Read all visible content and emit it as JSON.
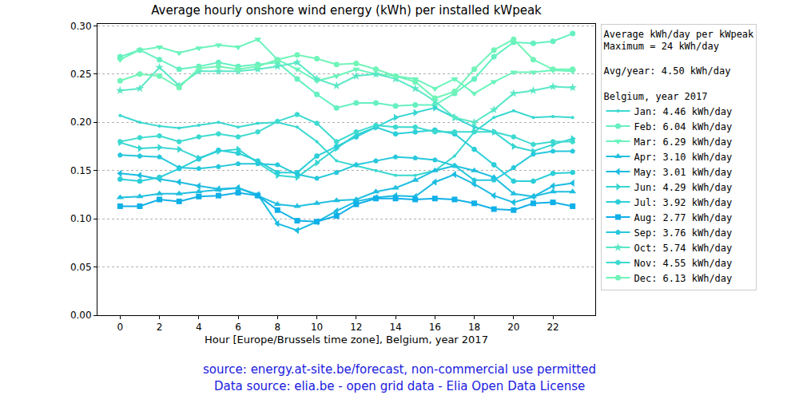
{
  "chart_data": {
    "type": "line",
    "title": "Average hourly onshore wind energy (kWh) per installed kWpeak",
    "x_label": "Hour [Europe/Brussels time zone], Belgium, year 2017",
    "x": [
      0,
      1,
      2,
      3,
      4,
      5,
      6,
      7,
      8,
      9,
      10,
      11,
      12,
      13,
      14,
      15,
      16,
      17,
      18,
      19,
      20,
      21,
      22,
      23
    ],
    "xlim": [
      -1.15,
      24.15
    ],
    "xticks": [
      0,
      2,
      4,
      6,
      8,
      10,
      12,
      14,
      16,
      18,
      20,
      22
    ],
    "ylim": [
      0,
      0.302
    ],
    "yticks": [
      {
        "value": 0,
        "label": "0.00"
      },
      {
        "value": 0.05,
        "label": "0.05"
      },
      {
        "value": 0.1,
        "label": "0.10"
      },
      {
        "value": 0.15,
        "label": "0.15"
      },
      {
        "value": 0.2,
        "label": "0.20"
      },
      {
        "value": 0.25,
        "label": "0.25"
      },
      {
        "value": 0.3,
        "label": "0.30"
      }
    ],
    "grid": true,
    "legend": "outside right",
    "legend_title": [
      [
        "Average kWh/day per kWpeak",
        "Maximum = 24 kWh/day"
      ],
      [
        "Avg/year: 4.50 kWh/day"
      ],
      [
        "Belgium, year 2017"
      ]
    ],
    "sources": [
      "source: energy.at-site.be/forecast, non-commercial use permitted",
      "Data source: elia.be - open grid data - Elia Open Data License"
    ],
    "series": [
      {
        "name": "Jan: 4.46 kWh/day",
        "color": "#3ad8d0",
        "marker": "point",
        "values": [
          0.207,
          0.2,
          0.196,
          0.194,
          0.197,
          0.2,
          0.195,
          0.199,
          0.2,
          0.195,
          0.18,
          0.16,
          0.155,
          0.15,
          0.145,
          0.145,
          0.15,
          0.165,
          0.19,
          0.205,
          0.212,
          0.205,
          0.206,
          0.205
        ]
      },
      {
        "name": "Feb: 6.04 kWh/day",
        "color": "#66f0c0",
        "marker": "circle",
        "values": [
          0.268,
          0.275,
          0.265,
          0.255,
          0.258,
          0.262,
          0.258,
          0.26,
          0.262,
          0.245,
          0.229,
          0.215,
          0.22,
          0.22,
          0.217,
          0.218,
          0.218,
          0.23,
          0.245,
          0.268,
          0.283,
          0.282,
          0.284,
          0.292
        ]
      },
      {
        "name": "Mar: 6.29 kWh/day",
        "color": "#6af4bc",
        "marker": "triangle-down",
        "values": [
          0.265,
          0.275,
          0.278,
          0.272,
          0.277,
          0.28,
          0.278,
          0.286,
          0.265,
          0.255,
          0.243,
          0.248,
          0.255,
          0.25,
          0.248,
          0.245,
          0.235,
          0.245,
          0.23,
          0.242,
          0.252,
          0.252,
          0.254,
          0.253
        ]
      },
      {
        "name": "Apr: 3.10 kWh/day",
        "color": "#20bfe0",
        "marker": "triangle-up",
        "values": [
          0.122,
          0.123,
          0.126,
          0.126,
          0.128,
          0.13,
          0.132,
          0.124,
          0.115,
          0.113,
          0.116,
          0.119,
          0.12,
          0.128,
          0.132,
          0.14,
          0.15,
          0.155,
          0.15,
          0.143,
          0.126,
          0.123,
          0.128,
          0.128
        ]
      },
      {
        "name": "May: 3.01 kWh/day",
        "color": "#1cbce2",
        "marker": "triangle-left",
        "values": [
          0.147,
          0.145,
          0.141,
          0.138,
          0.134,
          0.131,
          0.132,
          0.125,
          0.095,
          0.088,
          0.097,
          0.108,
          0.118,
          0.122,
          0.124,
          0.123,
          0.138,
          0.146,
          0.136,
          0.124,
          0.117,
          0.123,
          0.134,
          0.137
        ]
      },
      {
        "name": "Jun: 4.29 kWh/day",
        "color": "#36d6d2",
        "marker": "triangle-right",
        "values": [
          0.179,
          0.173,
          0.174,
          0.172,
          0.163,
          0.17,
          0.172,
          0.158,
          0.145,
          0.143,
          0.158,
          0.173,
          0.187,
          0.195,
          0.205,
          0.21,
          0.215,
          0.205,
          0.195,
          0.19,
          0.175,
          0.17,
          0.177,
          0.183
        ]
      },
      {
        "name": "Jul: 3.92 kWh/day",
        "color": "#2ccfd8",
        "marker": "octagon",
        "values": [
          0.141,
          0.139,
          0.143,
          0.152,
          0.162,
          0.171,
          0.168,
          0.16,
          0.148,
          0.148,
          0.165,
          0.175,
          0.185,
          0.195,
          0.188,
          0.19,
          0.192,
          0.188,
          0.172,
          0.156,
          0.139,
          0.139,
          0.147,
          0.148
        ]
      },
      {
        "name": "Aug: 2.77 kWh/day",
        "color": "#10b0e8",
        "marker": "square",
        "values": [
          0.113,
          0.113,
          0.12,
          0.118,
          0.123,
          0.124,
          0.127,
          0.124,
          0.109,
          0.098,
          0.097,
          0.103,
          0.115,
          0.121,
          0.121,
          0.12,
          0.121,
          0.12,
          0.116,
          0.11,
          0.109,
          0.116,
          0.117,
          0.113
        ]
      },
      {
        "name": "Sep: 3.76 kWh/day",
        "color": "#26c8dc",
        "marker": "pentagon",
        "values": [
          0.166,
          0.165,
          0.164,
          0.153,
          0.152,
          0.154,
          0.157,
          0.157,
          0.156,
          0.146,
          0.142,
          0.148,
          0.156,
          0.16,
          0.164,
          0.163,
          0.161,
          0.155,
          0.14,
          0.14,
          0.153,
          0.167,
          0.17,
          0.17
        ]
      },
      {
        "name": "Oct: 5.74 kWh/day",
        "color": "#5ae8c6",
        "marker": "star",
        "values": [
          0.233,
          0.235,
          0.257,
          0.238,
          0.253,
          0.253,
          0.253,
          0.255,
          0.258,
          0.262,
          0.245,
          0.238,
          0.248,
          0.25,
          0.245,
          0.235,
          0.222,
          0.205,
          0.2,
          0.213,
          0.23,
          0.233,
          0.237,
          0.236
        ]
      },
      {
        "name": "Nov: 4.55 kWh/day",
        "color": "#3cdad0",
        "marker": "hexagon",
        "values": [
          0.18,
          0.184,
          0.186,
          0.18,
          0.185,
          0.188,
          0.185,
          0.19,
          0.201,
          0.208,
          0.199,
          0.18,
          0.19,
          0.197,
          0.195,
          0.195,
          0.19,
          0.19,
          0.19,
          0.19,
          0.185,
          0.177,
          0.18,
          0.18
        ]
      },
      {
        "name": "Dec: 6.13 kWh/day",
        "color": "#70f4b8",
        "marker": "circle",
        "values": [
          0.243,
          0.25,
          0.248,
          0.236,
          0.256,
          0.258,
          0.255,
          0.258,
          0.265,
          0.27,
          0.266,
          0.26,
          0.261,
          0.255,
          0.248,
          0.242,
          0.225,
          0.232,
          0.255,
          0.275,
          0.286,
          0.265,
          0.255,
          0.255
        ]
      }
    ]
  }
}
